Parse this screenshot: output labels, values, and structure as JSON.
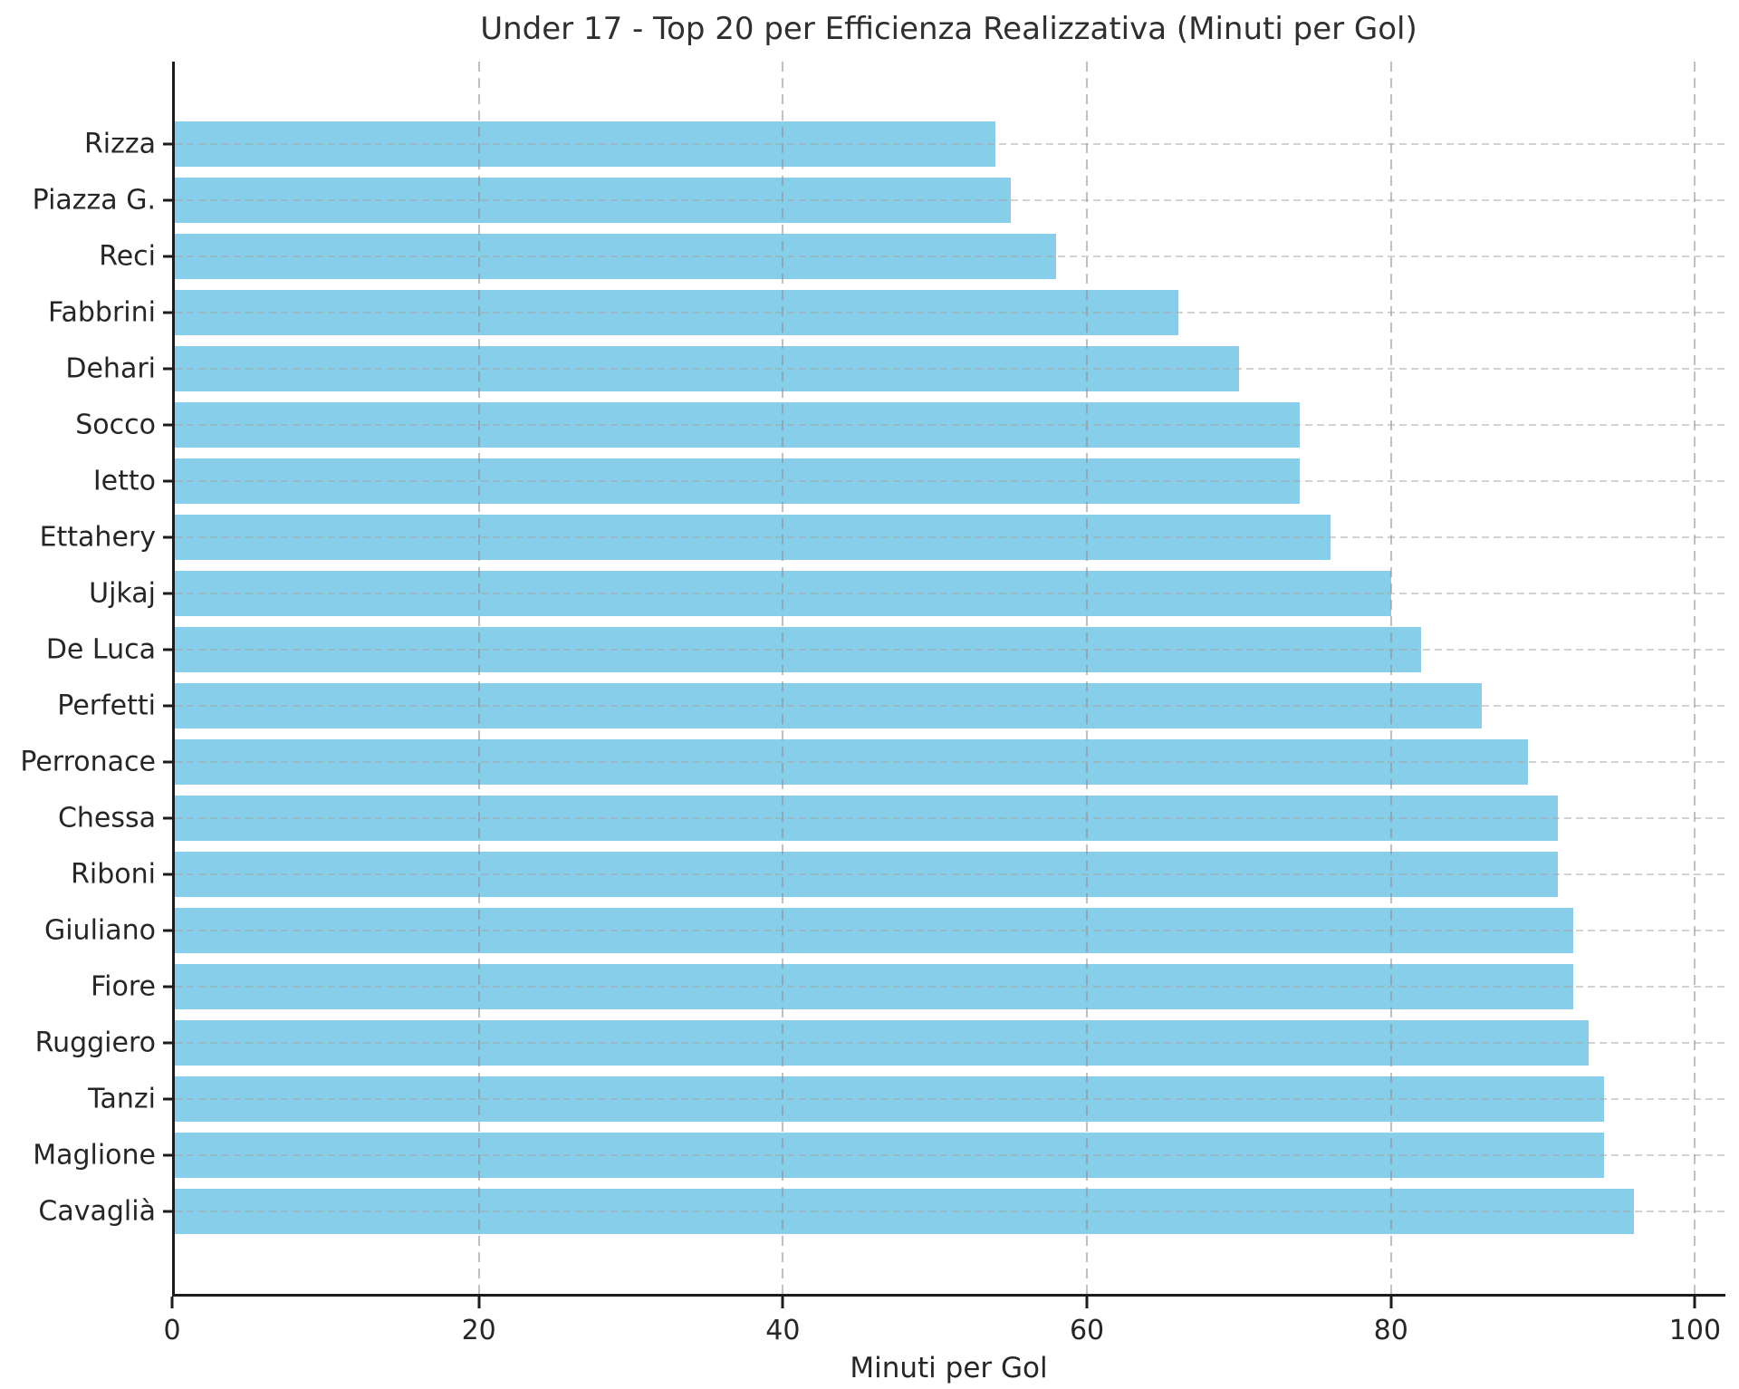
{
  "title": "Under 17 - Top 20 per Efficienza Realizzativa (Minuti per Gol)",
  "chart_data": {
    "type": "bar",
    "orientation": "horizontal",
    "title": "Under 17 - Top 20 per Efficienza Realizzativa (Minuti per Gol)",
    "xlabel": "Minuti per Gol",
    "ylabel": "",
    "categories": [
      "Rizza",
      "Piazza G.",
      "Reci",
      "Fabbrini",
      "Dehari",
      "Socco",
      "Ietto",
      "Ettahery",
      "Ujkaj",
      "De Luca",
      "Perfetti",
      "Perronace",
      "Chessa",
      "Riboni",
      "Giuliano",
      "Fiore",
      "Ruggiero",
      "Tanzi",
      "Maglione",
      "Cavaglià"
    ],
    "values": [
      54,
      55,
      58,
      66,
      70,
      74,
      74,
      76,
      80,
      82,
      86,
      89,
      91,
      91,
      92,
      92,
      93,
      94,
      94,
      96
    ],
    "xticks": [
      0,
      20,
      40,
      60,
      80,
      100
    ],
    "xlim": [
      0,
      102
    ],
    "grid": "dashed, both axes",
    "legend_position": "none",
    "bar_color": "#87CEEB",
    "spine_color": "#1c1c1c",
    "text_color": "#262626"
  }
}
